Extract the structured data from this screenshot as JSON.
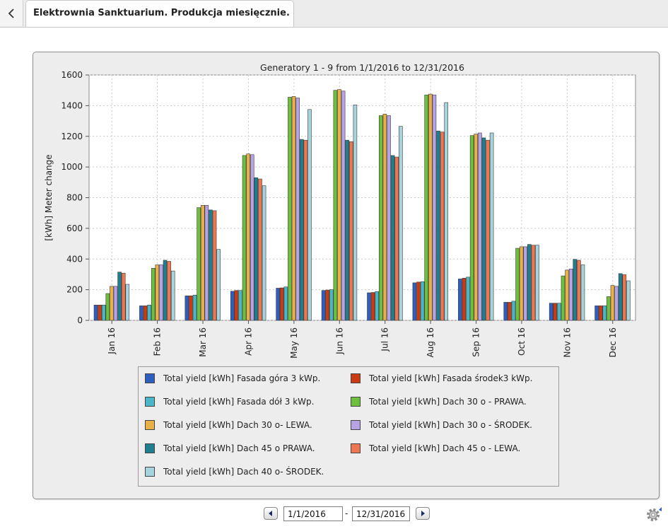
{
  "window": {
    "back_icon": "chevron-left-icon",
    "tab_title": "Elektrownia Sanktuarium. Produkcja miesięcznie."
  },
  "chart_data": {
    "type": "bar",
    "title": "Generatory 1 - 9 from 1/1/2016 to 12/31/2016",
    "xlabel": "",
    "ylabel": "[kWh] Meter change",
    "ylim": [
      0,
      1600
    ],
    "yticks": [
      0,
      200,
      400,
      600,
      800,
      1000,
      1200,
      1400,
      1600
    ],
    "grid": true,
    "legend_position": "bottom",
    "categories": [
      "Jan 16",
      "Feb 16",
      "Mar 16",
      "Apr 16",
      "May 16",
      "Jun 16",
      "Jul 16",
      "Aug 16",
      "Sep 16",
      "Oct 16",
      "Nov 16",
      "Dec 16"
    ],
    "series": [
      {
        "name": "Total yield [kWh] Fasada góra 3 kWp.",
        "color": "#2e5fbe",
        "values": [
          100,
          95,
          160,
          190,
          210,
          195,
          180,
          245,
          270,
          118,
          112,
          95
        ]
      },
      {
        "name": "Total yield [kWh] Fasada środek3 kWp.",
        "color": "#cc3a12",
        "values": [
          100,
          95,
          160,
          195,
          212,
          198,
          182,
          250,
          275,
          118,
          112,
          95
        ]
      },
      {
        "name": "Total yield [kWh] Fasada dół 3 kWp.",
        "color": "#4ab6c8",
        "values": [
          100,
          100,
          165,
          195,
          218,
          200,
          188,
          252,
          282,
          125,
          112,
          95
        ]
      },
      {
        "name": "Total yield [kWh] Dach 30 o - PRAWA.",
        "color": "#6cc03c",
        "values": [
          175,
          340,
          735,
          1075,
          1455,
          1500,
          1335,
          1470,
          1205,
          470,
          290,
          155
        ]
      },
      {
        "name": "Total yield [kWh] Dach 30 o- LEWA.",
        "color": "#e9b04a",
        "values": [
          222,
          362,
          750,
          1085,
          1460,
          1505,
          1345,
          1475,
          1215,
          480,
          328,
          228
        ]
      },
      {
        "name": "Total yield [kWh] Dach 30 o - ŚRODEK.",
        "color": "#b6a3e6",
        "values": [
          222,
          362,
          750,
          1080,
          1450,
          1495,
          1335,
          1470,
          1222,
          480,
          335,
          222
        ]
      },
      {
        "name": "Total yield [kWh] Dach 45 o PRAWA.",
        "color": "#1f7f8e",
        "values": [
          315,
          392,
          720,
          930,
          1180,
          1175,
          1075,
          1235,
          1190,
          495,
          398,
          305
        ]
      },
      {
        "name": "Total yield [kWh] Dach 45 o - LEWA.",
        "color": "#ee7650",
        "values": [
          308,
          385,
          715,
          922,
          1175,
          1165,
          1065,
          1228,
          1175,
          490,
          392,
          298
        ]
      },
      {
        "name": "Total yield [kWh] Dach 40 o- ŚRODEK.",
        "color": "#a6d4dc",
        "values": [
          235,
          322,
          463,
          878,
          1375,
          1405,
          1265,
          1420,
          1222,
          490,
          362,
          258
        ]
      }
    ]
  },
  "date_range": {
    "prev_icon": "arrow-left-icon",
    "next_icon": "arrow-right-icon",
    "from": "1/1/2016",
    "separator": "-",
    "to": "12/31/2016",
    "settings_icon": "gear-icon"
  }
}
